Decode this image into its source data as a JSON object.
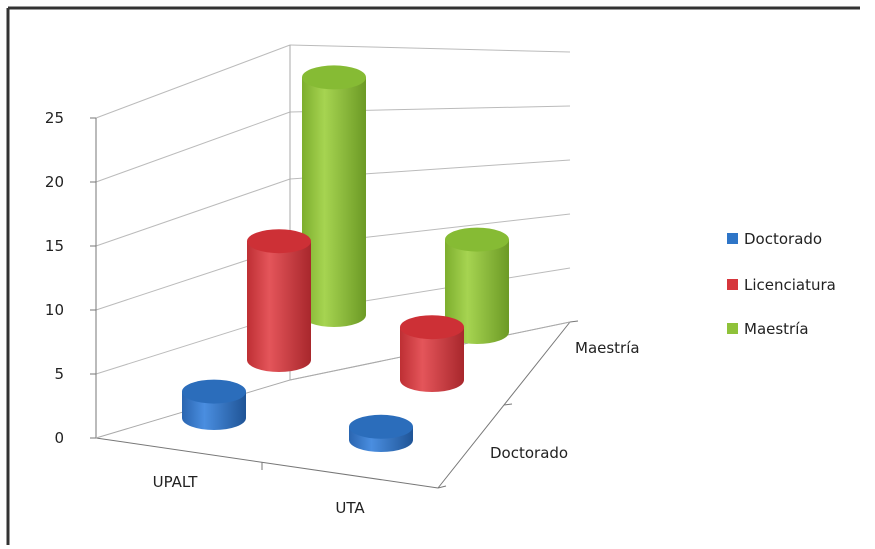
{
  "chart_data": {
    "type": "bar",
    "variant": "3d-cylinder",
    "categories": [
      "UPALT",
      "UTA"
    ],
    "depth_labels": [
      "Doctorado",
      "Maestría"
    ],
    "series": [
      {
        "name": "Doctorado",
        "values": [
          2,
          1
        ],
        "color": "#2E75C7"
      },
      {
        "name": "Licenciatura",
        "values": [
          9,
          4
        ],
        "color": "#D6363C"
      },
      {
        "name": "Maestría",
        "values": [
          18,
          7
        ],
        "color": "#8FC23A"
      }
    ],
    "y_ticks": [
      "0",
      "5",
      "10",
      "15",
      "20",
      "25"
    ],
    "ylim": [
      0,
      25
    ],
    "grid": true,
    "legend_position": "right"
  }
}
